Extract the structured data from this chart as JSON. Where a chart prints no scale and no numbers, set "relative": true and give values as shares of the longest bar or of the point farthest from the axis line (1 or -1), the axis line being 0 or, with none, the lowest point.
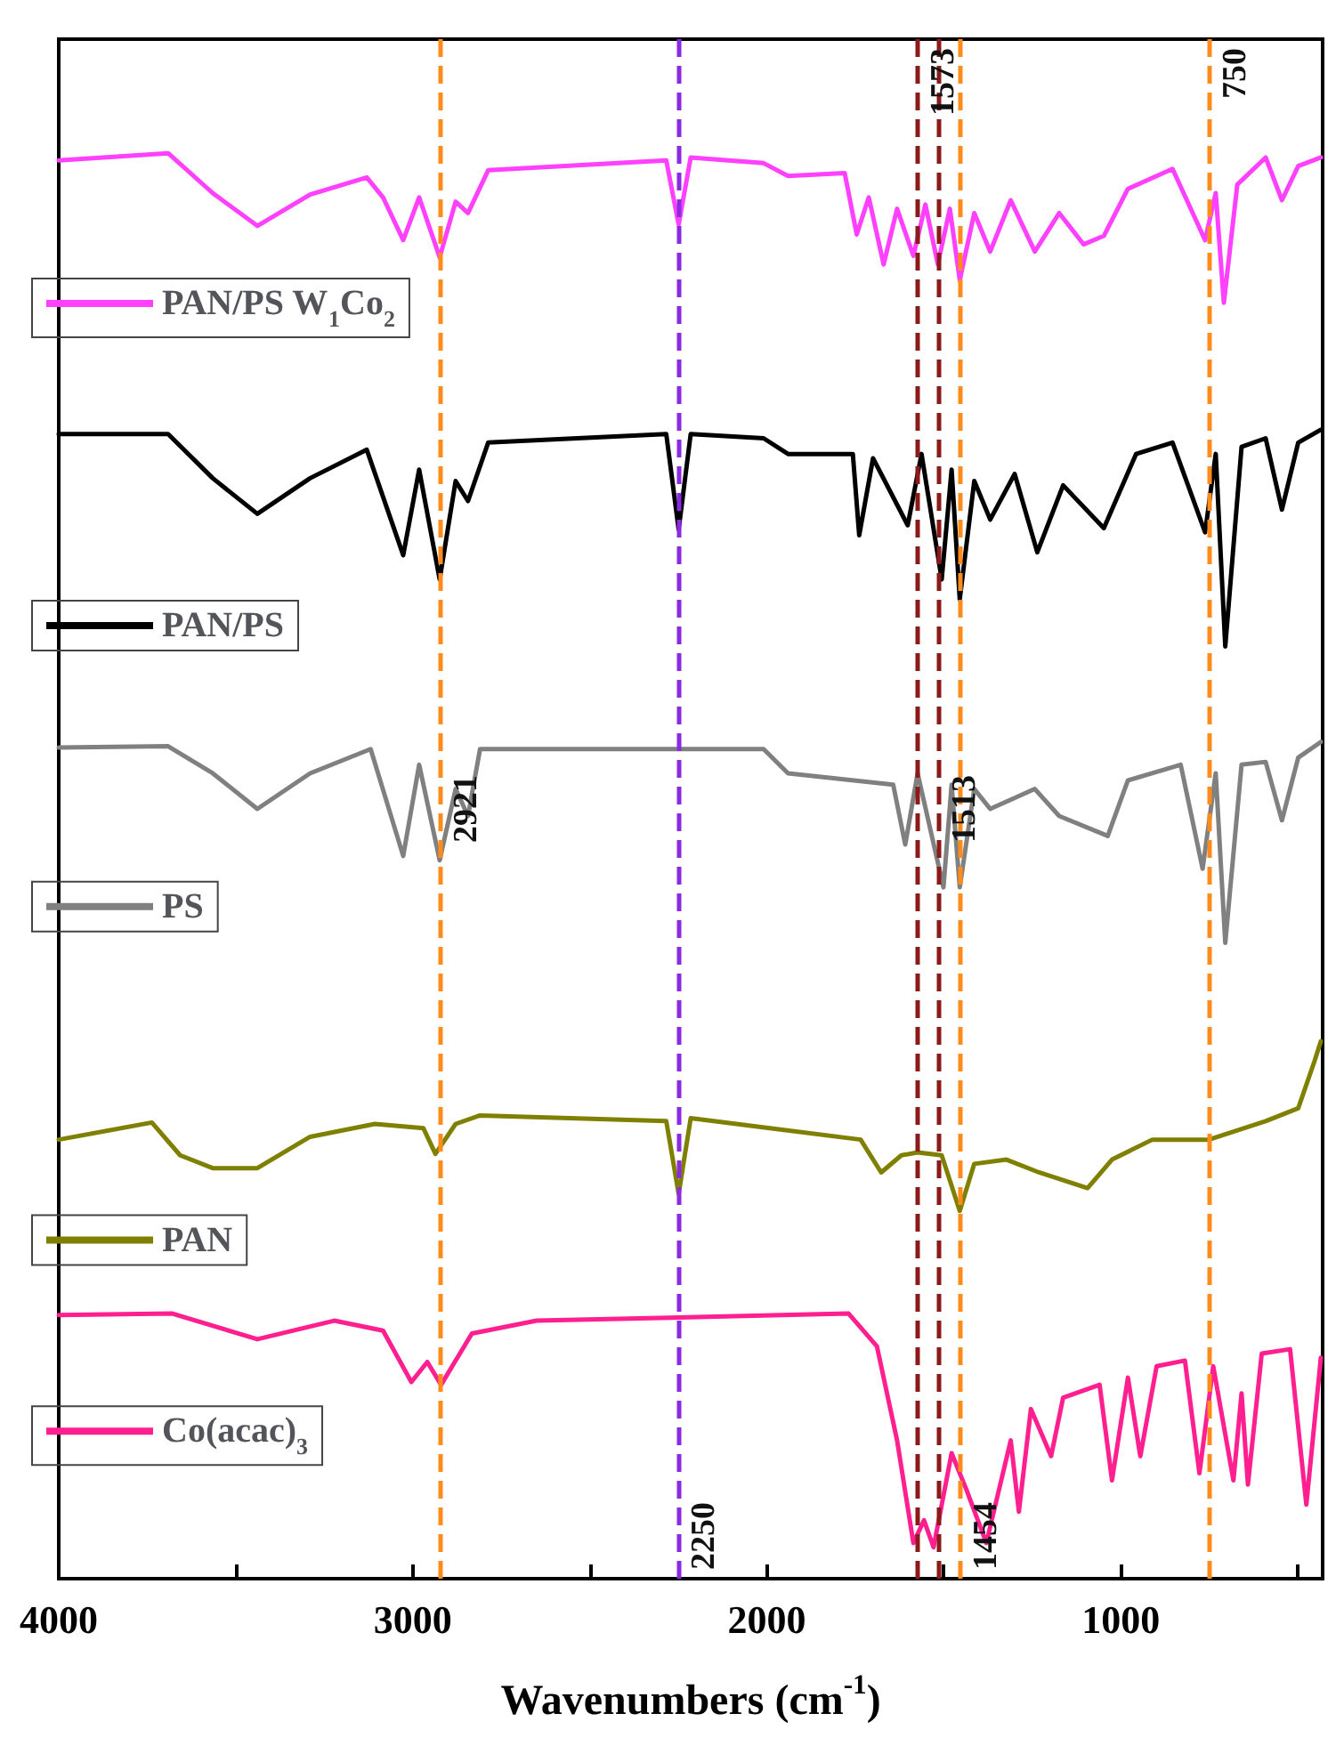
{
  "chart_data": {
    "type": "line",
    "relative": true,
    "xlabel": "Wavenumbers (cm$^{-1}$)",
    "xlim": [
      4000,
      430
    ],
    "xticks": [
      4000,
      {
        "value": 3500,
        "label": null
      },
      3000,
      {
        "value": 2500,
        "label": null
      },
      2000,
      {
        "value": 1500,
        "label": null
      },
      1000,
      {
        "value": 500,
        "label": null
      }
    ],
    "grid": false,
    "legend": "left",
    "marker": "none",
    "line_style": "solid",
    "series": [
      {
        "name": "PAN/PS W$_{1}$Co$_{2}$",
        "color": "#ff40ff",
        "x": [
          4000,
          3691,
          3565,
          3439,
          3290,
          3130,
          3084,
          3027,
          2982,
          2924,
          2879,
          2844,
          2787,
          2284,
          2249,
          2215,
          2009,
          1940,
          1780,
          1746,
          1712,
          1670,
          1632,
          1586,
          1552,
          1517,
          1483,
          1455,
          1414,
          1369,
          1311,
          1243,
          1174,
          1105,
          1048,
          980,
          854,
          762,
          732,
          709,
          671,
          591,
          545,
          499,
          435
        ],
        "values": [
          0.995,
          1,
          0.972,
          0.949,
          0.971,
          0.983,
          0.969,
          0.939,
          0.969,
          0.927,
          0.966,
          0.958,
          0.988,
          0.995,
          0.95,
          0.997,
          0.993,
          0.984,
          0.986,
          0.943,
          0.969,
          0.922,
          0.961,
          0.928,
          0.964,
          0.922,
          0.961,
          0.911,
          0.958,
          0.931,
          0.967,
          0.931,
          0.958,
          0.936,
          0.942,
          0.975,
          0.989,
          0.939,
          0.972,
          0.895,
          0.978,
          0.997,
          0.967,
          0.991,
          0.997
        ]
      },
      {
        "name": "PAN/PS",
        "color": "#000000",
        "x": [
          4000,
          3691,
          3565,
          3439,
          3290,
          3130,
          3027,
          2982,
          2924,
          2879,
          2844,
          2787,
          2284,
          2249,
          2215,
          2009,
          1940,
          1757,
          1739,
          1700,
          1602,
          1563,
          1506,
          1478,
          1455,
          1414,
          1369,
          1300,
          1236,
          1163,
          1048,
          957,
          854,
          762,
          732,
          705,
          659,
          591,
          545,
          499,
          435
        ],
        "values": [
          0.803,
          0.803,
          0.772,
          0.747,
          0.772,
          0.792,
          0.718,
          0.778,
          0.701,
          0.77,
          0.756,
          0.797,
          0.803,
          0.736,
          0.803,
          0.8,
          0.789,
          0.789,
          0.732,
          0.786,
          0.739,
          0.789,
          0.701,
          0.778,
          0.687,
          0.77,
          0.743,
          0.775,
          0.72,
          0.767,
          0.737,
          0.789,
          0.797,
          0.734,
          0.789,
          0.654,
          0.794,
          0.8,
          0.75,
          0.797,
          0.806
        ]
      },
      {
        "name": "PS",
        "color": "#808080",
        "x": [
          4000,
          3691,
          3565,
          3439,
          3290,
          3119,
          3027,
          2982,
          2924,
          2879,
          2844,
          2810,
          2009,
          1940,
          1643,
          1609,
          1574,
          1501,
          1478,
          1455,
          1414,
          1369,
          1243,
          1174,
          1037,
          980,
          831,
          769,
          732,
          705,
          659,
          591,
          545,
          499,
          435
        ],
        "values": [
          0.583,
          0.584,
          0.565,
          0.54,
          0.565,
          0.582,
          0.507,
          0.571,
          0.504,
          0.554,
          0.535,
          0.582,
          0.582,
          0.565,
          0.557,
          0.515,
          0.565,
          0.485,
          0.557,
          0.485,
          0.554,
          0.54,
          0.554,
          0.535,
          0.521,
          0.56,
          0.571,
          0.498,
          0.565,
          0.446,
          0.571,
          0.573,
          0.532,
          0.576,
          0.587
        ]
      },
      {
        "name": "PAN",
        "color": "#808000",
        "x": [
          4000,
          3737,
          3657,
          3565,
          3439,
          3290,
          3107,
          2970,
          2936,
          2879,
          2810,
          2284,
          2249,
          2215,
          1735,
          1677,
          1620,
          1574,
          1506,
          1455,
          1414,
          1323,
          1231,
          1094,
          1025,
          911,
          751,
          591,
          499,
          453,
          435
        ],
        "values": [
          0.308,
          0.32,
          0.297,
          0.288,
          0.288,
          0.31,
          0.319,
          0.316,
          0.298,
          0.319,
          0.325,
          0.321,
          0.27,
          0.323,
          0.308,
          0.285,
          0.297,
          0.299,
          0.297,
          0.258,
          0.291,
          0.294,
          0.285,
          0.274,
          0.294,
          0.308,
          0.308,
          0.321,
          0.33,
          0.363,
          0.377
        ]
      },
      {
        "name": "Co(acac)$_{3}$",
        "color": "#ff1f8f",
        "x": [
          4000,
          3679,
          3439,
          3222,
          3084,
          3004,
          2959,
          2920,
          2833,
          2650,
          1769,
          1689,
          1632,
          1586,
          1556,
          1529,
          1478,
          1437,
          1380,
          1311,
          1288,
          1254,
          1197,
          1163,
          1060,
          1025,
          980,
          945,
          899,
          819,
          778,
          739,
          682,
          659,
          641,
          602,
          522,
          476,
          435
        ],
        "values": [
          0.185,
          0.186,
          0.168,
          0.181,
          0.174,
          0.138,
          0.152,
          0.136,
          0.172,
          0.181,
          0.186,
          0.163,
          0.097,
          0.025,
          0.041,
          0.022,
          0.088,
          0.063,
          0.025,
          0.097,
          0.047,
          0.119,
          0.086,
          0.127,
          0.136,
          0.069,
          0.141,
          0.086,
          0.149,
          0.153,
          0.074,
          0.149,
          0.069,
          0.13,
          0.066,
          0.158,
          0.161,
          0.052,
          0.155
        ]
      }
    ],
    "ref_lines": [
      {
        "axis": "x",
        "value": 2921,
        "label": "2921",
        "color": "#ff8c1a",
        "line_style": "dashed"
      },
      {
        "axis": "x",
        "value": 2250,
        "label": "2250",
        "color": "#8a2be2",
        "line_style": "dashed"
      },
      {
        "axis": "x",
        "value": 1573,
        "label": "1573",
        "color": "#8b1a1a",
        "line_style": "dashed"
      },
      {
        "axis": "x",
        "value": 1513,
        "label": "1513",
        "color": "#8b1a1a",
        "line_style": "dashed"
      },
      {
        "axis": "x",
        "value": 1454,
        "label": "1454",
        "color": "#ff8c1a",
        "line_style": "dashed"
      },
      {
        "axis": "x",
        "value": 750,
        "label": "750",
        "color": "#ff8c1a",
        "line_style": "dashed"
      }
    ]
  }
}
